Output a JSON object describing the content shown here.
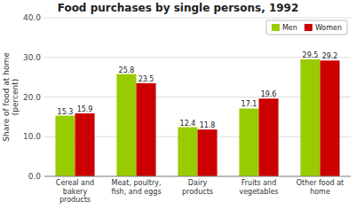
{
  "chart_data": {
    "type": "bar",
    "title": "Food purchases by single persons, 1992",
    "categories": [
      "Cereal and\nbakery\nproducts",
      "Meat, poultry,\nfish, and eggs",
      "Dairy\nproducts",
      "Fruits and\nvegetables",
      "Other food at\nhome"
    ],
    "series": [
      {
        "name": "Men",
        "color": "#99cc00",
        "values": [
          15.3,
          25.8,
          12.4,
          17.1,
          29.5
        ]
      },
      {
        "name": "Women",
        "color": "#cc0000",
        "values": [
          15.9,
          23.5,
          11.8,
          19.6,
          29.2
        ]
      }
    ],
    "ylabel": "Share of food at home\n(percent)",
    "ylim": [
      0,
      40
    ],
    "yticks": [
      {
        "value": 0,
        "label": "0.0"
      },
      {
        "value": 10,
        "label": "10.0"
      },
      {
        "value": 20,
        "label": "20.0"
      },
      {
        "value": 30,
        "label": "30.0"
      },
      {
        "value": 40,
        "label": "40.0"
      }
    ],
    "grid": true,
    "legend": "upper right",
    "data_labels": true
  }
}
